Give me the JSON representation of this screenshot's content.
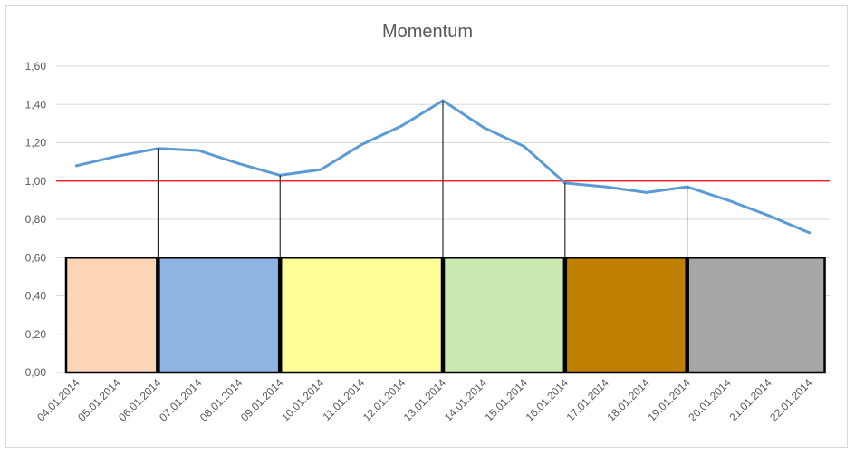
{
  "chart_data": {
    "type": "line",
    "title": "Momentum",
    "xlabel": "",
    "ylabel": "",
    "ylim": [
      0,
      1.6
    ],
    "yticks": [
      "0,00",
      "0,20",
      "0,40",
      "0,60",
      "0,80",
      "1,00",
      "1,20",
      "1,40",
      "1,60"
    ],
    "ytick_values": [
      0,
      0.2,
      0.4,
      0.6,
      0.8,
      1.0,
      1.2,
      1.4,
      1.6
    ],
    "categories": [
      "04.01.2014",
      "05.01.2014",
      "06.01.2014",
      "07.01.2014",
      "08.01.2014",
      "09.01.2014",
      "10.01.2014",
      "11.01.2014",
      "12.01.2014",
      "13.01.2014",
      "14.01.2014",
      "15.01.2014",
      "16.01.2014",
      "17.01.2014",
      "18.01.2014",
      "19.01.2014",
      "20.01.2014",
      "21.01.2014",
      "22.01.2014"
    ],
    "series": [
      {
        "values": [
          1.08,
          1.13,
          1.17,
          1.16,
          1.09,
          1.03,
          1.06,
          1.19,
          1.29,
          1.42,
          1.28,
          1.18,
          0.99,
          0.97,
          0.94,
          0.97,
          0.9,
          0.82,
          0.73
        ],
        "color": "#5b9bd5"
      }
    ],
    "reference_line": {
      "value": 1.0,
      "color": "#ff0000"
    },
    "vertical_markers": [
      "06.01.2014",
      "09.01.2014",
      "13.01.2014",
      "16.01.2014",
      "19.01.2014"
    ],
    "bands": [
      {
        "from": "04.01.2014",
        "to": "06.01.2014",
        "level": 0.6,
        "color": "#fbd5b5"
      },
      {
        "from": "06.01.2014",
        "to": "09.01.2014",
        "level": 0.6,
        "color": "#8eb4e3"
      },
      {
        "from": "09.01.2014",
        "to": "13.01.2014",
        "level": 0.6,
        "color": "#ffff99"
      },
      {
        "from": "13.01.2014",
        "to": "16.01.2014",
        "level": 0.6,
        "color": "#c9e9b0"
      },
      {
        "from": "16.01.2014",
        "to": "19.01.2014",
        "level": 0.6,
        "color": "#bf7f00"
      },
      {
        "from": "19.01.2014",
        "to": "22.01.2014",
        "level": 0.6,
        "color": "#a6a6a6"
      }
    ],
    "grid": true,
    "legend": "none"
  }
}
